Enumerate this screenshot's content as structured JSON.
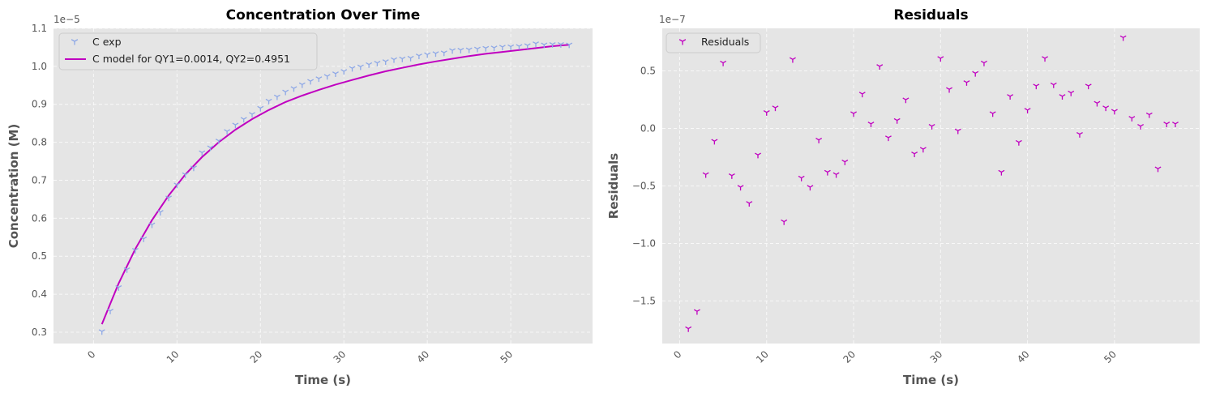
{
  "chart_data": [
    {
      "type": "scatter+line",
      "title": "Concentration Over Time",
      "xlabel": "Time (s)",
      "ylabel": "Concentration (M)",
      "y_offset_label": "1e−5",
      "xlim": [
        -4.8,
        59.8
      ],
      "ylim": [
        2.7,
        11.0
      ],
      "xticks": [
        0,
        10,
        20,
        30,
        40,
        50
      ],
      "yticks": [
        0.3,
        0.4,
        0.5,
        0.6,
        0.7,
        0.8,
        0.9,
        1.0,
        1.1
      ],
      "ytick_scale": 10,
      "x_tick_rotation": 45,
      "grid": true,
      "legend_position": "upper-left",
      "series": [
        {
          "name": "C exp",
          "kind": "scatter",
          "marker": "tri_down",
          "color": "#8ea8e6",
          "x": [
            1,
            2,
            3,
            4,
            5,
            6,
            7,
            8,
            9,
            10,
            11,
            12,
            13,
            14,
            15,
            16,
            17,
            18,
            19,
            20,
            21,
            22,
            23,
            24,
            25,
            26,
            27,
            28,
            29,
            30,
            31,
            32,
            33,
            34,
            35,
            36,
            37,
            38,
            39,
            40,
            41,
            42,
            43,
            44,
            45,
            46,
            47,
            48,
            49,
            50,
            51,
            52,
            53,
            54,
            55,
            56,
            57
          ],
          "y": [
            3.02,
            3.56,
            4.18,
            4.65,
            5.16,
            5.46,
            5.83,
            6.16,
            6.54,
            6.88,
            7.15,
            7.33,
            7.73,
            7.86,
            8.04,
            8.29,
            8.46,
            8.61,
            8.74,
            8.9,
            9.09,
            9.2,
            9.33,
            9.42,
            9.52,
            9.61,
            9.68,
            9.74,
            9.81,
            9.87,
            9.95,
            9.99,
            10.05,
            10.09,
            10.13,
            10.18,
            10.2,
            10.22,
            10.28,
            10.31,
            10.34,
            10.36,
            10.42,
            10.43,
            10.44,
            10.46,
            10.48,
            10.49,
            10.51,
            10.52,
            10.53,
            10.55,
            10.6,
            10.57,
            10.58,
            10.58,
            10.57
          ]
        },
        {
          "name": "C model for QY1=0.0014, QY2=0.4951",
          "kind": "line",
          "color": "#c000c0",
          "x": [
            1,
            3,
            5,
            7,
            9,
            11,
            13,
            15,
            17,
            19,
            21,
            23,
            25,
            27,
            29,
            31,
            33,
            35,
            37,
            39,
            41,
            43,
            45,
            47,
            49,
            51,
            53,
            55,
            57
          ],
          "y": [
            3.21,
            4.28,
            5.19,
            5.95,
            6.6,
            7.15,
            7.61,
            8.0,
            8.33,
            8.61,
            8.85,
            9.06,
            9.23,
            9.38,
            9.52,
            9.64,
            9.76,
            9.87,
            9.96,
            10.05,
            10.13,
            10.2,
            10.27,
            10.33,
            10.38,
            10.43,
            10.48,
            10.53,
            10.57
          ]
        }
      ]
    },
    {
      "type": "scatter",
      "title": "Residuals",
      "xlabel": "Time (s)",
      "ylabel": "Residuals",
      "y_offset_label": "1e−7",
      "xlim": [
        -2.0,
        59.8
      ],
      "ylim": [
        -1.87,
        0.87
      ],
      "xticks": [
        0,
        10,
        20,
        30,
        40,
        50
      ],
      "yticks": [
        -1.5,
        -1.0,
        -0.5,
        0.0,
        0.5
      ],
      "x_tick_rotation": 45,
      "grid": true,
      "legend_position": "upper-left",
      "series": [
        {
          "name": "Residuals",
          "kind": "scatter",
          "marker": "tri_down",
          "color": "#c000c0",
          "x": [
            1,
            2,
            3,
            4,
            5,
            6,
            7,
            8,
            9,
            10,
            11,
            12,
            13,
            14,
            15,
            16,
            17,
            18,
            19,
            20,
            21,
            22,
            23,
            24,
            25,
            26,
            27,
            28,
            29,
            30,
            31,
            32,
            33,
            34,
            35,
            36,
            37,
            38,
            39,
            40,
            41,
            42,
            43,
            44,
            45,
            46,
            47,
            48,
            49,
            50,
            51,
            52,
            53,
            54,
            55,
            56,
            57
          ],
          "y": [
            -1.74,
            -1.59,
            -0.4,
            -0.11,
            0.57,
            -0.41,
            -0.51,
            -0.65,
            -0.23,
            0.14,
            0.18,
            -0.81,
            0.6,
            -0.43,
            -0.51,
            -0.1,
            -0.38,
            -0.4,
            -0.29,
            0.13,
            0.3,
            0.04,
            0.54,
            -0.08,
            0.07,
            0.25,
            -0.22,
            -0.18,
            0.02,
            0.61,
            0.34,
            -0.02,
            0.4,
            0.48,
            0.57,
            0.13,
            -0.38,
            0.28,
            -0.12,
            0.16,
            0.37,
            0.61,
            0.38,
            0.28,
            0.31,
            -0.05,
            0.37,
            0.22,
            0.18,
            0.15,
            0.79,
            0.09,
            0.02,
            0.12,
            -0.35,
            0.04,
            0.04
          ]
        }
      ]
    }
  ]
}
